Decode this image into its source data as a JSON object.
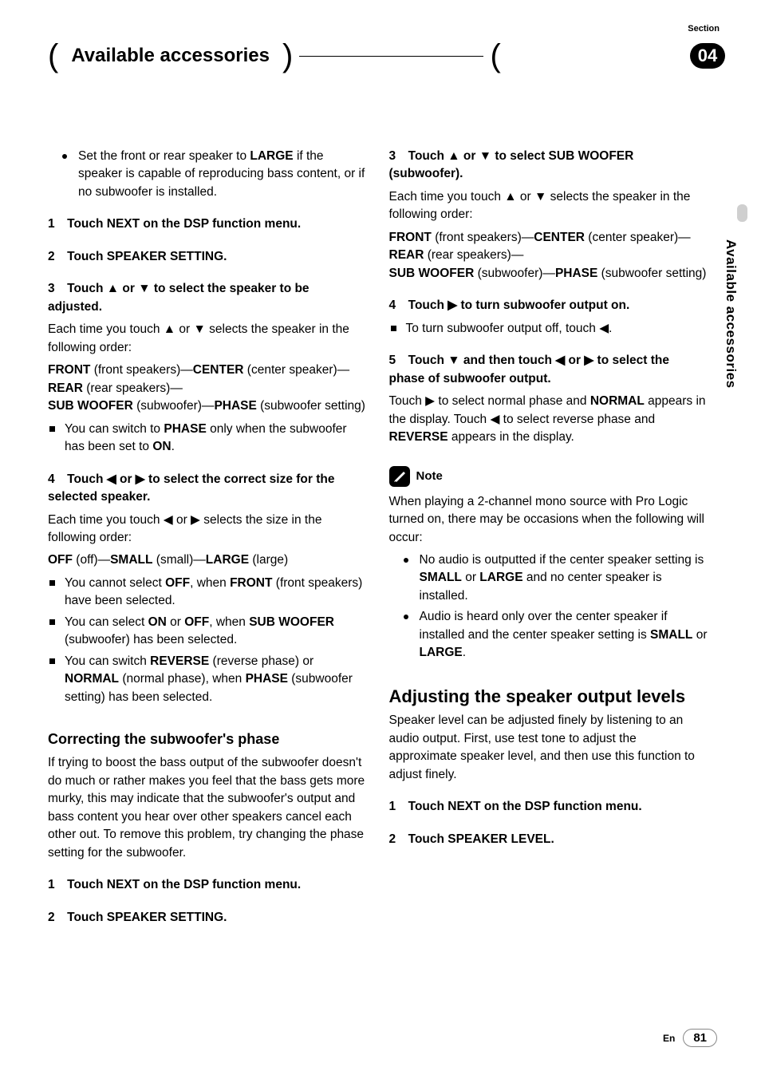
{
  "header": {
    "title": "Available accessories",
    "section_label": "Section",
    "section_number": "04",
    "side_tab": "Available accessories"
  },
  "left": {
    "intro_bullet": "Set the front or rear speaker to <b>LARGE</b> if the speaker is capable of reproducing bass content, or if no subwoofer is installed.",
    "step1": "1 Touch NEXT on the DSP function menu.",
    "step2": "2 Touch SPEAKER SETTING.",
    "step3_head": "3 Touch ▲ or ▼ to select the speaker to be adjusted.",
    "step3_body1": "Each time you touch ▲ or ▼ selects the speaker in the following order:",
    "step3_body2": "<b>FRONT</b> (front speakers)—<b>CENTER</b> (center speaker)—<b>REAR</b> (rear speakers)—<br><b>SUB WOOFER</b> (subwoofer)—<b>PHASE</b> (subwoofer setting)",
    "step3_bullet": "You can switch to <b>PHASE</b> only when the subwoofer has been set to <b>ON</b>.",
    "step4_head": "4 Touch ◀ or ▶ to select the correct size for the selected speaker.",
    "step4_body1": "Each time you touch ◀ or ▶ selects the size in the following order:",
    "step4_body2": "<b>OFF</b> (off)—<b>SMALL</b> (small)—<b>LARGE</b> (large)",
    "step4_b1": "You cannot select <b>OFF</b>, when <b>FRONT</b> (front speakers) have been selected.",
    "step4_b2": "You can select <b>ON</b> or <b>OFF</b>, when <b>SUB&nbsp;WOOFER</b> (subwoofer) has been selected.",
    "step4_b3": "You can switch <b>REVERSE</b> (reverse phase) or <b>NORMAL</b> (normal phase), when <b>PHASE</b> (subwoofer setting) has been selected.",
    "sub_head": "Correcting the subwoofer's phase",
    "sub_body": "If trying to boost the bass output of the subwoofer doesn't do much or rather makes you feel that the bass gets more murky, this may indicate that the subwoofer's output and bass content you hear over other speakers cancel each other out. To remove this problem, try changing the phase setting for the subwoofer.",
    "sub_step1": "1 Touch NEXT on the DSP function menu.",
    "sub_step2": "2 Touch SPEAKER SETTING."
  },
  "right": {
    "step3_head": "3 Touch ▲ or ▼ to select SUB WOOFER (subwoofer).",
    "step3_body1": "Each time you touch ▲ or ▼ selects the speaker in the following order:",
    "step3_body2": "<b>FRONT</b> (front speakers)—<b>CENTER</b> (center speaker)—<b>REAR</b> (rear speakers)—<br><b>SUB WOOFER</b> (subwoofer)—<b>PHASE</b> (subwoofer setting)",
    "step4_head": "4 Touch ▶ to turn subwoofer output on.",
    "step4_b1": "To turn subwoofer output off, touch ◀.",
    "step5_head": "5 Touch ▼ and then touch ◀ or ▶ to select the phase of subwoofer output.",
    "step5_body": "Touch ▶ to select normal phase and <b>NORMAL</b> appears in the display. Touch ◀ to select reverse phase and <b>REVERSE</b> appears in the display.",
    "note_label": "Note",
    "note_body": "When playing a 2-channel mono source with Pro Logic turned on, there may be occasions when the following will occur:",
    "note_b1": "No audio is outputted if the center speaker setting is <b>SMALL</b> or <b>LARGE</b> and no center speaker is installed.",
    "note_b2": "Audio is heard only over the center speaker if installed and the center speaker setting is <b>SMALL</b> or <b>LARGE</b>.",
    "h2": "Adjusting the speaker output levels",
    "h2_body": "Speaker level can be adjusted finely by listening to an audio output. First, use test tone to adjust the approximate speaker level, and then use this function to adjust finely.",
    "h2_step1": "1 Touch NEXT on the DSP function menu.",
    "h2_step2": "2 Touch SPEAKER LEVEL."
  },
  "footer": {
    "lang": "En",
    "page": "81"
  }
}
